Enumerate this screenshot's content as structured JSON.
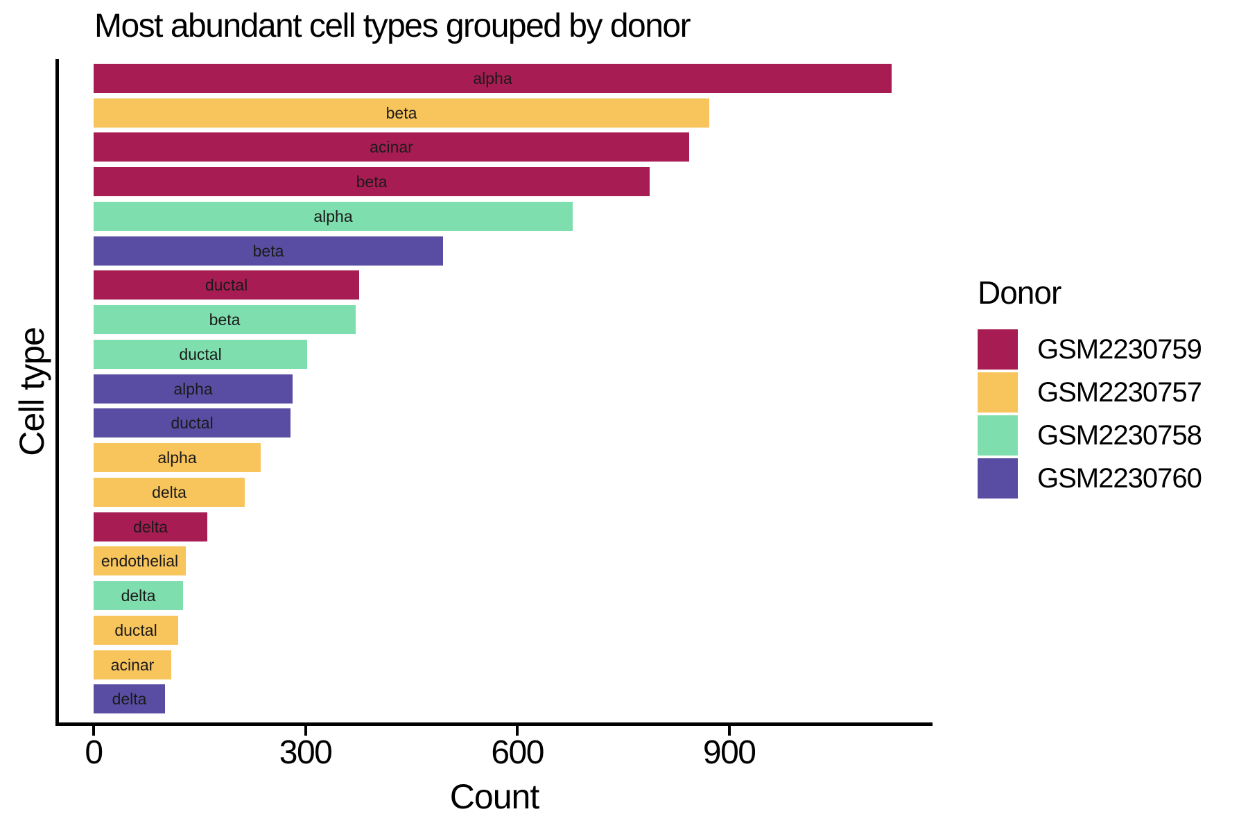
{
  "chart_data": {
    "type": "bar",
    "orientation": "horizontal",
    "title": "Most abundant cell types grouped by donor",
    "xlabel": "Count",
    "ylabel": "Cell type",
    "xlim": [
      0,
      1186
    ],
    "xticks": [
      0,
      300,
      600,
      900
    ],
    "grid": false,
    "legend_title": "Donor",
    "legend_position": "right",
    "donors": [
      {
        "label": "GSM2230759",
        "color": "#A71D53"
      },
      {
        "label": "GSM2230757",
        "color": "#F8C45C"
      },
      {
        "label": "GSM2230758",
        "color": "#7FDEAE"
      },
      {
        "label": "GSM2230760",
        "color": "#584DA2"
      }
    ],
    "bars": [
      {
        "cell_type": "alpha",
        "donor": "GSM2230759",
        "count": 1130
      },
      {
        "cell_type": "beta",
        "donor": "GSM2230757",
        "count": 872
      },
      {
        "cell_type": "acinar",
        "donor": "GSM2230759",
        "count": 843
      },
      {
        "cell_type": "beta",
        "donor": "GSM2230759",
        "count": 787
      },
      {
        "cell_type": "alpha",
        "donor": "GSM2230758",
        "count": 678
      },
      {
        "cell_type": "beta",
        "donor": "GSM2230760",
        "count": 495
      },
      {
        "cell_type": "ductal",
        "donor": "GSM2230759",
        "count": 376
      },
      {
        "cell_type": "beta",
        "donor": "GSM2230758",
        "count": 371
      },
      {
        "cell_type": "ductal",
        "donor": "GSM2230758",
        "count": 302
      },
      {
        "cell_type": "alpha",
        "donor": "GSM2230760",
        "count": 282
      },
      {
        "cell_type": "ductal",
        "donor": "GSM2230760",
        "count": 279
      },
      {
        "cell_type": "alpha",
        "donor": "GSM2230757",
        "count": 237
      },
      {
        "cell_type": "delta",
        "donor": "GSM2230757",
        "count": 214
      },
      {
        "cell_type": "delta",
        "donor": "GSM2230759",
        "count": 161
      },
      {
        "cell_type": "endothelial",
        "donor": "GSM2230757",
        "count": 131
      },
      {
        "cell_type": "delta",
        "donor": "GSM2230758",
        "count": 127
      },
      {
        "cell_type": "ductal",
        "donor": "GSM2230757",
        "count": 120
      },
      {
        "cell_type": "acinar",
        "donor": "GSM2230757",
        "count": 110
      },
      {
        "cell_type": "delta",
        "donor": "GSM2230760",
        "count": 101
      }
    ]
  },
  "colors": {
    "background": "#ffffff",
    "axis": "#000000",
    "bar_label_text": "#1a1a1a"
  }
}
